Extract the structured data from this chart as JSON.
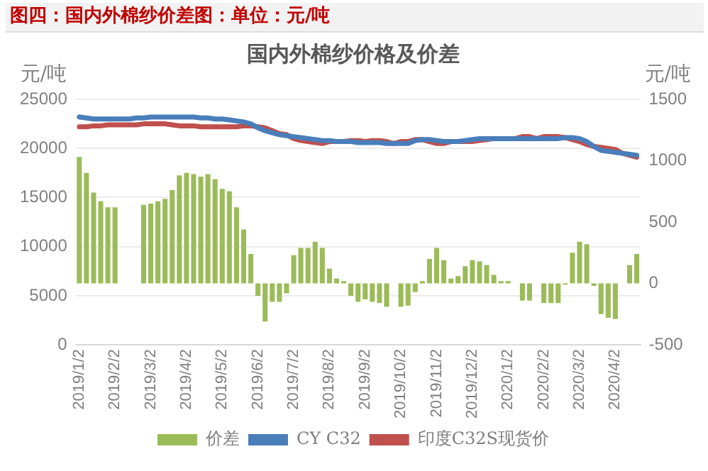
{
  "chart_data": {
    "type": "bar",
    "title": "图四：国内外棉纱价差图：单位：元/吨",
    "subtitle": "国内外棉纱价格及价差",
    "ylabel": "元/吨",
    "y2label": "元/吨",
    "categories": [
      "2019/1/2",
      null,
      null,
      null,
      null,
      "2019/2/2",
      null,
      null,
      null,
      null,
      "2019/3/2",
      null,
      null,
      null,
      null,
      "2019/4/2",
      null,
      null,
      null,
      null,
      "2019/5/2",
      null,
      null,
      null,
      null,
      "2019/6/2",
      null,
      null,
      null,
      null,
      "2019/7/2",
      null,
      null,
      null,
      null,
      "2019/8/2",
      null,
      null,
      null,
      null,
      "2019/9/2",
      null,
      null,
      null,
      null,
      "2019/10/2",
      null,
      null,
      null,
      null,
      "2019/11/2",
      null,
      null,
      null,
      null,
      "2019/12/2",
      null,
      null,
      null,
      null,
      "2020/1/2",
      null,
      null,
      null,
      null,
      "2020/2/2",
      null,
      null,
      null,
      null,
      "2020/3/2",
      null,
      null,
      null,
      null,
      "2020/4/2",
      null,
      null,
      null
    ],
    "series": [
      {
        "name": "价差",
        "axis": "y2",
        "color": "#9bbb59",
        "values": [
          1030,
          900,
          740,
          670,
          620,
          620,
          null,
          null,
          null,
          640,
          650,
          670,
          690,
          760,
          880,
          900,
          890,
          870,
          890,
          850,
          770,
          750,
          620,
          440,
          240,
          -100,
          -310,
          -150,
          -150,
          -80,
          230,
          290,
          290,
          340,
          290,
          120,
          40,
          20,
          -100,
          -150,
          -130,
          -150,
          -160,
          -190,
          null,
          -190,
          -180,
          -70,
          20,
          200,
          290,
          190,
          40,
          60,
          140,
          190,
          180,
          150,
          70,
          20,
          20,
          null,
          -140,
          -140,
          null,
          -160,
          -160,
          -160,
          -10,
          250,
          340,
          320,
          -20,
          -250,
          -280,
          -290,
          0,
          150,
          240
        ]
      },
      {
        "name": "CY C32",
        "type": "line",
        "color": "#4a7ebb",
        "values": [
          23200,
          23100,
          23000,
          23000,
          23000,
          23000,
          23000,
          23000,
          23100,
          23100,
          23200,
          23200,
          23200,
          23200,
          23200,
          23200,
          23200,
          23100,
          23100,
          23000,
          23000,
          22900,
          22800,
          22700,
          22500,
          22100,
          21800,
          21600,
          21400,
          21300,
          21200,
          21100,
          21000,
          20900,
          20800,
          20800,
          20700,
          20700,
          20700,
          20600,
          20600,
          20600,
          20600,
          20500,
          20500,
          20500,
          20500,
          20800,
          20900,
          20900,
          20800,
          20700,
          20700,
          20700,
          20800,
          20900,
          21000,
          21000,
          21000,
          21000,
          21000,
          21000,
          21000,
          21000,
          21000,
          21000,
          21000,
          21000,
          21100,
          21100,
          21000,
          20700,
          20200,
          19800,
          19700,
          19600,
          19500,
          19400,
          19300
        ]
      },
      {
        "name": "印度C32S现货价",
        "type": "line",
        "color": "#c0504d",
        "values": [
          22200,
          22200,
          22300,
          22300,
          22400,
          22400,
          22400,
          22400,
          22400,
          22500,
          22500,
          22500,
          22500,
          22400,
          22300,
          22300,
          22300,
          22200,
          22200,
          22200,
          22200,
          22200,
          22200,
          22300,
          22300,
          22200,
          22100,
          21800,
          21500,
          21400,
          21000,
          20800,
          20700,
          20600,
          20500,
          20700,
          20700,
          20700,
          20800,
          20800,
          20700,
          20800,
          20800,
          20700,
          20500,
          20700,
          20700,
          20900,
          20900,
          20700,
          20500,
          20500,
          20700,
          20700,
          20700,
          20700,
          20800,
          20900,
          21000,
          21000,
          21000,
          21000,
          21200,
          21200,
          21000,
          21200,
          21200,
          21200,
          21100,
          20900,
          20700,
          20400,
          20200,
          20100,
          20000,
          19900,
          19500,
          19300,
          19100
        ]
      }
    ],
    "ylim": [
      0,
      25000
    ],
    "yticks": [
      0,
      5000,
      10000,
      15000,
      20000,
      25000
    ],
    "y2lim": [
      -500,
      1500
    ],
    "y2ticks": [
      -500,
      0,
      500,
      1000,
      1500
    ],
    "grid": "y",
    "legend": "bottom",
    "marker": "none"
  }
}
